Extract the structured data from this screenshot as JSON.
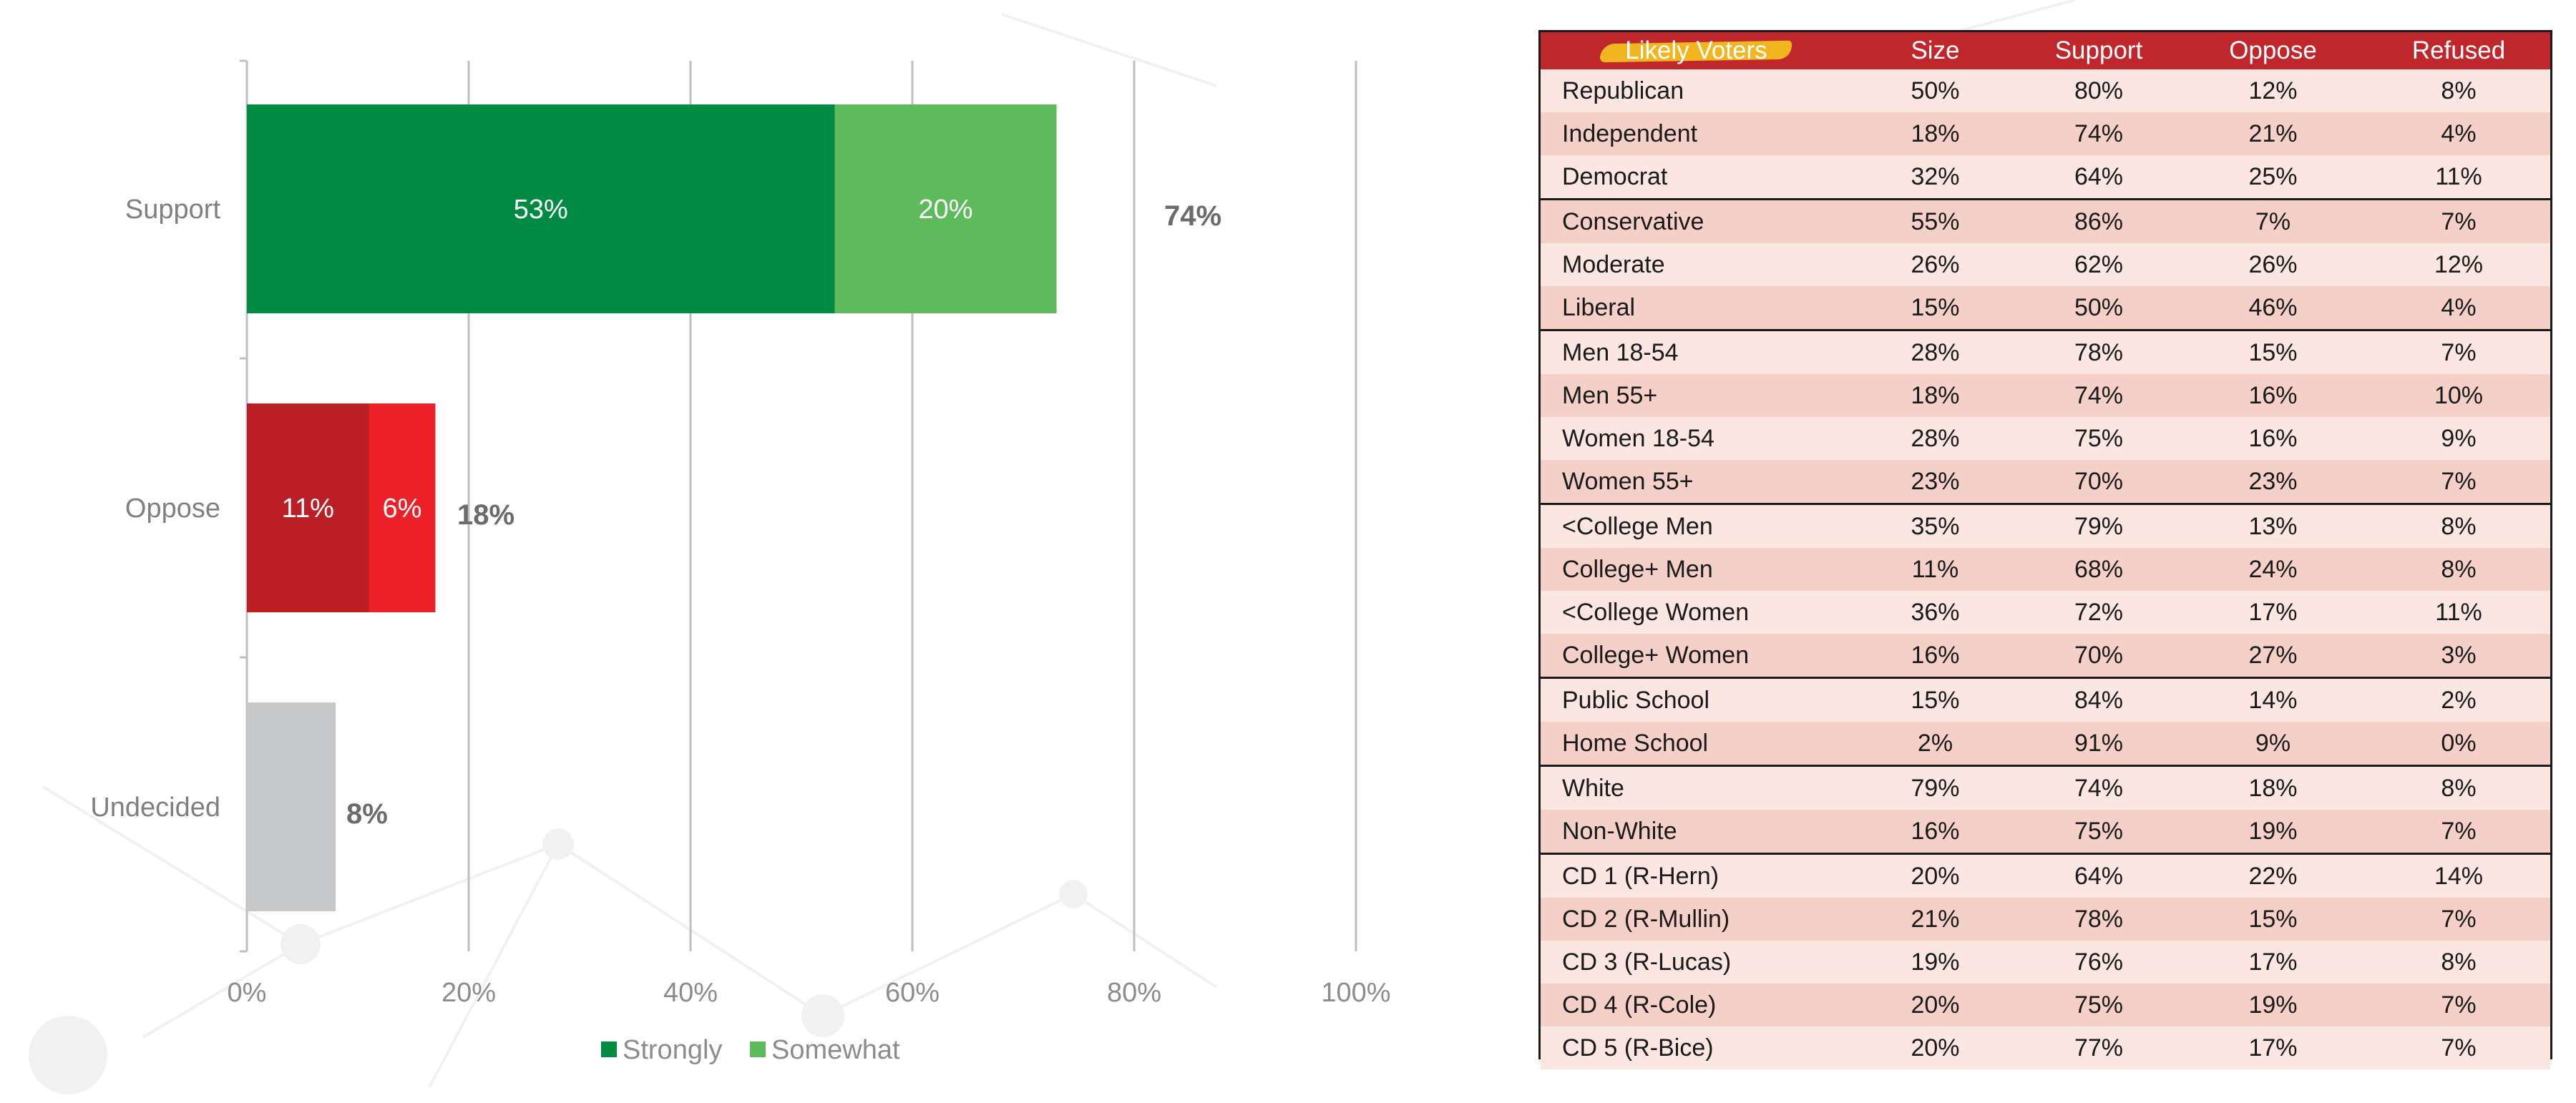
{
  "chart_data": [
    {
      "type": "bar",
      "orientation": "horizontal",
      "stacked": true,
      "categories": [
        "Support",
        "Oppose",
        "Undecided"
      ],
      "series": [
        {
          "name": "Strongly",
          "values": [
            53,
            11,
            8
          ]
        },
        {
          "name": "Somewhat",
          "values": [
            20,
            6,
            null
          ]
        }
      ],
      "totals": [
        74,
        18,
        8
      ],
      "xlim": [
        0,
        100
      ],
      "xticks": [
        "0%",
        "20%",
        "40%",
        "60%",
        "80%",
        "100%"
      ],
      "segment_labels": [
        [
          "53%",
          "20%"
        ],
        [
          "11%",
          "6%"
        ],
        [
          null,
          null
        ]
      ],
      "total_labels": [
        "74%",
        "18%",
        "8%"
      ],
      "legend": {
        "position": "bottom",
        "entries": [
          "Strongly",
          "Somewhat"
        ]
      },
      "grid": "vertical",
      "colors": {
        "Support": [
          "#008a42",
          "#5dbb5b"
        ],
        "Oppose": [
          "#bb1e24",
          "#ec2128"
        ],
        "Undecided": [
          "#c6c7c9",
          null
        ],
        "legend": [
          "#008a42",
          "#5dbb5b"
        ]
      }
    },
    {
      "type": "table",
      "columns": [
        "Likely Voters",
        "Size",
        "Support",
        "Oppose",
        "Refused"
      ],
      "header_color": "#c0272d",
      "header_highlight_color": "#f1b51f",
      "row_colors": [
        "#fbe6e2",
        "#f5d0c8"
      ],
      "rows": [
        [
          "Republican",
          "50%",
          "80%",
          "12%",
          "8%"
        ],
        [
          "Independent",
          "18%",
          "74%",
          "21%",
          "4%"
        ],
        [
          "Democrat",
          "32%",
          "64%",
          "25%",
          "11%"
        ],
        [
          "Conservative",
          "55%",
          "86%",
          "7%",
          "7%"
        ],
        [
          "Moderate",
          "26%",
          "62%",
          "26%",
          "12%"
        ],
        [
          "Liberal",
          "15%",
          "50%",
          "46%",
          "4%"
        ],
        [
          "Men 18-54",
          "28%",
          "78%",
          "15%",
          "7%"
        ],
        [
          "Men 55+",
          "18%",
          "74%",
          "16%",
          "10%"
        ],
        [
          "Women 18-54",
          "28%",
          "75%",
          "16%",
          "9%"
        ],
        [
          "Women 55+",
          "23%",
          "70%",
          "23%",
          "7%"
        ],
        [
          "<College Men",
          "35%",
          "79%",
          "13%",
          "8%"
        ],
        [
          "College+ Men",
          "11%",
          "68%",
          "24%",
          "8%"
        ],
        [
          "<College Women",
          "36%",
          "72%",
          "17%",
          "11%"
        ],
        [
          "College+ Women",
          "16%",
          "70%",
          "27%",
          "3%"
        ],
        [
          "Public School",
          "15%",
          "84%",
          "14%",
          "2%"
        ],
        [
          "Home School",
          "2%",
          "91%",
          "9%",
          "0%"
        ],
        [
          "White",
          "79%",
          "74%",
          "18%",
          "8%"
        ],
        [
          "Non-White",
          "16%",
          "75%",
          "19%",
          "7%"
        ],
        [
          "CD 1 (R-Hern)",
          "20%",
          "64%",
          "22%",
          "14%"
        ],
        [
          "CD 2 (R-Mullin)",
          "21%",
          "78%",
          "15%",
          "7%"
        ],
        [
          "CD 3 (R-Lucas)",
          "19%",
          "76%",
          "17%",
          "8%"
        ],
        [
          "CD 4 (R-Cole)",
          "20%",
          "75%",
          "19%",
          "7%"
        ],
        [
          "CD 5 (R-Bice)",
          "20%",
          "77%",
          "17%",
          "7%"
        ]
      ],
      "group_starts": [
        3,
        6,
        10,
        14,
        16,
        18
      ]
    }
  ]
}
